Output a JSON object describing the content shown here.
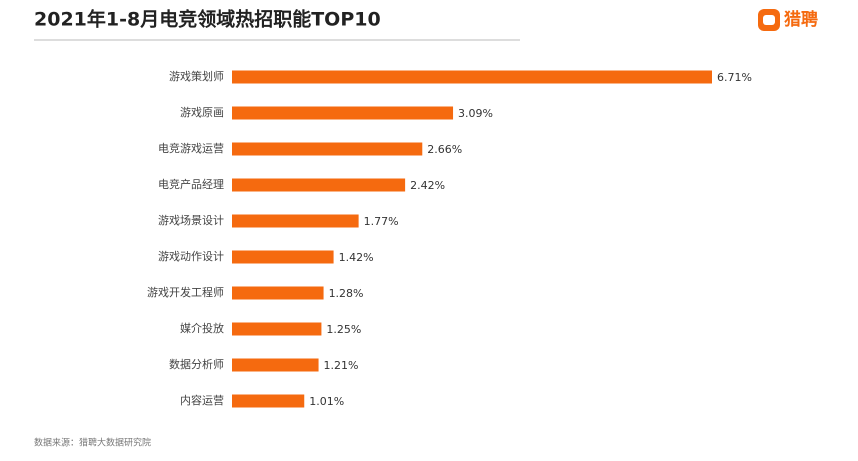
{
  "chart_data": {
    "type": "bar",
    "orientation": "horizontal",
    "title": "2021年1-8月电竞领域热招职能TOP10",
    "brand": "猎聘",
    "source": "数据来源：猎聘大数据研究院",
    "categories": [
      "游戏策划师",
      "游戏原画",
      "电竞游戏运营",
      "电竞产品经理",
      "游戏场景设计",
      "游戏动作设计",
      "游戏开发工程师",
      "媒介投放",
      "数据分析师",
      "内容运营"
    ],
    "values": [
      6.71,
      3.09,
      2.66,
      2.42,
      1.77,
      1.42,
      1.28,
      1.25,
      1.21,
      1.01
    ],
    "value_labels": [
      "6.71%",
      "3.09%",
      "2.66%",
      "2.42%",
      "1.77%",
      "1.42%",
      "1.28%",
      "1.25%",
      "1.21%",
      "1.01%"
    ],
    "color": "#f56a0f"
  }
}
